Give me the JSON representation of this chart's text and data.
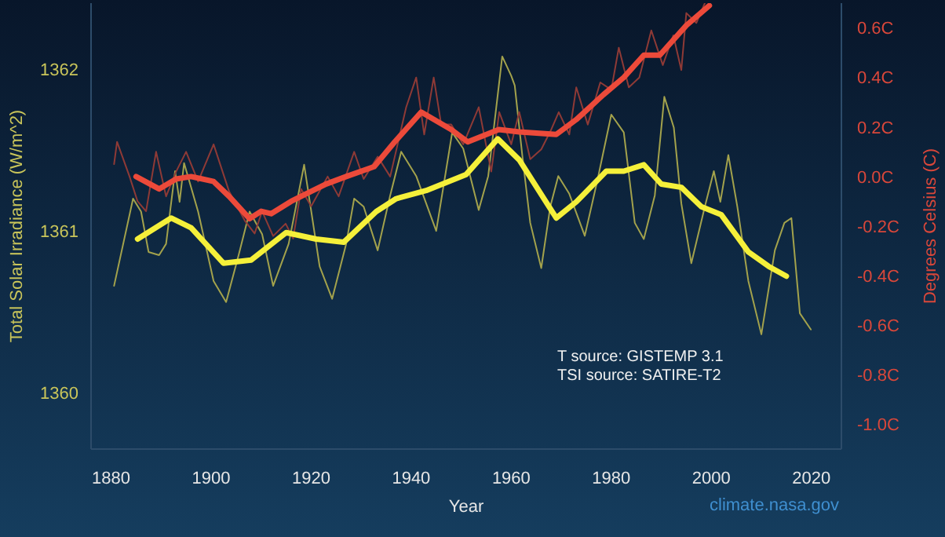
{
  "chart_data": {
    "type": "line",
    "xlabel": "Year",
    "ylabel": "Total Solar Irradiance (W/m^2)",
    "y2label": "Degrees Celsius (C)",
    "xlim": [
      1876,
      2026
    ],
    "xticks": [
      1880,
      1900,
      1920,
      1940,
      1960,
      1980,
      2000,
      2020
    ],
    "ylim": [
      1359.65,
      1362.41
    ],
    "yticks": [
      1360,
      1361,
      1362
    ],
    "y2lim": [
      -1.1,
      0.7
    ],
    "y2ticks": [
      {
        "value": 0.6,
        "label": "0.6C"
      },
      {
        "value": 0.4,
        "label": "0.4C"
      },
      {
        "value": 0.2,
        "label": "0.2C"
      },
      {
        "value": 0,
        "label": "0.0C"
      },
      {
        "value": -0.2,
        "label": "-0.2C"
      },
      {
        "value": -0.4,
        "label": "-0.4C"
      },
      {
        "value": -0.6,
        "label": "-0.6C"
      },
      {
        "value": -0.8,
        "label": "-0.8C"
      },
      {
        "value": -1.0,
        "label": "-1.0C"
      }
    ],
    "grid": false,
    "legend": false,
    "series": [
      {
        "color": "#a3a24c",
        "axis": "y",
        "x": [
          1880.6,
          1884.4,
          1886,
          1887.5,
          1889.6,
          1891,
          1892.8,
          1893.7,
          1894.6,
          1897.4,
          1900.5,
          1903,
          1905.5,
          1907.7,
          1910.2,
          1912.4,
          1915.5,
          1918.6,
          1921.7,
          1924.2,
          1927,
          1928.6,
          1930.5,
          1933.3,
          1935.8,
          1938,
          1941,
          1945,
          1948.2,
          1950.4,
          1953.5,
          1955.4,
          1958.2,
          1960,
          1960.7,
          1962.2,
          1963.8,
          1966,
          1967.8,
          1969.4,
          1971.6,
          1974.7,
          1977.2,
          1980,
          1982.5,
          1984.7,
          1986.5,
          1988.7,
          1990.6,
          1992.5,
          1994,
          1996,
          1998.7,
          2000.5,
          2001.8,
          2003.4,
          2005.2,
          2007.4,
          2010,
          2012.7,
          2014.6,
          2016,
          2017.7,
          2019.9
        ],
        "values": [
          1360.66,
          1361.2,
          1361.12,
          1360.87,
          1360.85,
          1360.92,
          1361.37,
          1361.18,
          1361.42,
          1361.12,
          1360.69,
          1360.56,
          1360.85,
          1361.12,
          1360.98,
          1360.66,
          1360.92,
          1361.41,
          1360.78,
          1360.58,
          1360.92,
          1361.2,
          1361.15,
          1360.88,
          1361.22,
          1361.49,
          1361.34,
          1361.0,
          1361.61,
          1361.51,
          1361.13,
          1361.34,
          1362.08,
          1361.96,
          1361.9,
          1361.47,
          1361.05,
          1360.77,
          1361.15,
          1361.34,
          1361.23,
          1360.97,
          1361.31,
          1361.72,
          1361.61,
          1361.05,
          1360.95,
          1361.22,
          1361.83,
          1361.64,
          1361.17,
          1360.8,
          1361.15,
          1361.37,
          1361.18,
          1361.47,
          1361.15,
          1360.69,
          1360.36,
          1360.88,
          1361.05,
          1361.08,
          1360.49,
          1360.39
        ]
      },
      {
        "color": "#8e3a36",
        "axis": "y2",
        "x": [
          1880.6,
          1881.2,
          1883.7,
          1885.3,
          1887,
          1889,
          1891,
          1893,
          1895,
          1897.4,
          1900.5,
          1903.6,
          1906.8,
          1908.7,
          1910.2,
          1912.4,
          1914.9,
          1916.4,
          1918,
          1920,
          1923.3,
          1925.5,
          1928.6,
          1930.5,
          1933.3,
          1935.8,
          1939,
          1941,
          1942.6,
          1944.5,
          1946,
          1948,
          1950.4,
          1953.5,
          1956,
          1957.6,
          1960,
          1961.6,
          1963.8,
          1966,
          1968,
          1969.5,
          1971.6,
          1973,
          1975.3,
          1977.8,
          1980,
          1981.5,
          1983.5,
          1985.6,
          1988,
          1990.3,
          1992.4,
          1994,
          1995,
          1997,
          1998.7
        ],
        "values": [
          0.05,
          0.14,
          0.0,
          -0.1,
          -0.14,
          0.1,
          -0.08,
          0.02,
          0.1,
          -0.02,
          0.13,
          -0.06,
          -0.18,
          -0.23,
          -0.14,
          -0.24,
          -0.19,
          -0.25,
          -0.05,
          -0.12,
          0.0,
          -0.08,
          0.1,
          -0.01,
          0.08,
          0.0,
          0.28,
          0.4,
          0.17,
          0.4,
          0.21,
          0.21,
          0.13,
          0.28,
          0.02,
          0.26,
          0.13,
          0.26,
          0.07,
          0.11,
          0.19,
          0.26,
          0.17,
          0.36,
          0.21,
          0.38,
          0.35,
          0.52,
          0.36,
          0.4,
          0.59,
          0.45,
          0.57,
          0.43,
          0.66,
          0.62,
          0.7
        ]
      },
      {
        "color": "#f5f03a",
        "axis": "y",
        "x": [
          1885.3,
          1892,
          1896,
          1902.5,
          1908,
          1915,
          1921,
          1926.5,
          1933,
          1937,
          1943,
          1951,
          1957.3,
          1961.6,
          1969,
          1973,
          1979,
          1982.5,
          1986.5,
          1990,
          1994,
          1998,
          2002,
          2007.4,
          2011.5,
          2015
        ],
        "values": [
          1360.95,
          1361.08,
          1361.02,
          1360.8,
          1360.82,
          1360.99,
          1360.95,
          1360.93,
          1361.12,
          1361.2,
          1361.25,
          1361.35,
          1361.57,
          1361.44,
          1361.08,
          1361.18,
          1361.37,
          1361.37,
          1361.41,
          1361.29,
          1361.27,
          1361.15,
          1361.1,
          1360.87,
          1360.78,
          1360.72
        ]
      },
      {
        "color": "#ec4a3a",
        "axis": "y2",
        "x": [
          1885,
          1889.6,
          1893,
          1896,
          1900.5,
          1903.6,
          1907.7,
          1910,
          1912,
          1916,
          1919,
          1923,
          1927,
          1932.6,
          1936.7,
          1942,
          1948,
          1951.3,
          1957.5,
          1961.6,
          1969,
          1973,
          1978.4,
          1982.5,
          1986.5,
          1989.7,
          1995,
          1999.6
        ],
        "values": [
          0.0,
          -0.05,
          -0.01,
          0.0,
          -0.02,
          -0.08,
          -0.17,
          -0.14,
          -0.15,
          -0.1,
          -0.07,
          -0.03,
          0.0,
          0.04,
          0.14,
          0.26,
          0.19,
          0.14,
          0.19,
          0.18,
          0.17,
          0.23,
          0.33,
          0.4,
          0.49,
          0.49,
          0.61,
          0.69
        ]
      }
    ],
    "annotations": [
      "T source: GISTEMP 3.1",
      "TSI source: SATIRE-T2",
      "climate.nasa.gov"
    ]
  }
}
